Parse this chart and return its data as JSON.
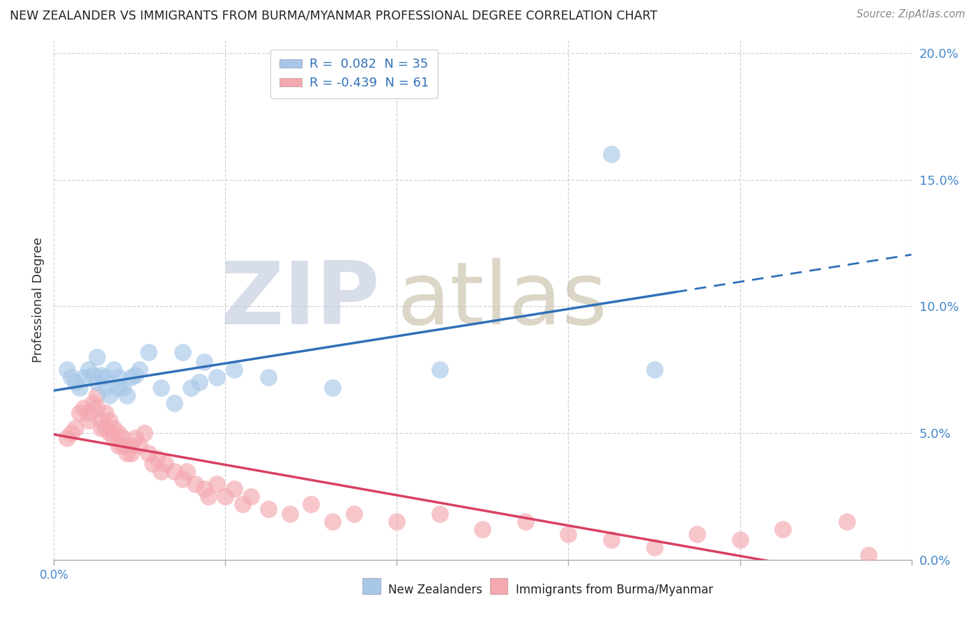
{
  "title": "NEW ZEALANDER VS IMMIGRANTS FROM BURMA/MYANMAR PROFESSIONAL DEGREE CORRELATION CHART",
  "source": "Source: ZipAtlas.com",
  "ylabel": "Professional Degree",
  "legend_nz": "R =  0.082  N = 35",
  "legend_burma": "R = -0.439  N = 61",
  "legend_label_nz": "New Zealanders",
  "legend_label_burma": "Immigrants from Burma/Myanmar",
  "nz_color": "#a8c8e8",
  "burma_color": "#f4a8b0",
  "nz_line_color": "#3070b8",
  "burma_line_color": "#d84060",
  "nz_scatter_x": [
    0.003,
    0.004,
    0.005,
    0.006,
    0.007,
    0.008,
    0.009,
    0.01,
    0.01,
    0.011,
    0.012,
    0.012,
    0.013,
    0.014,
    0.015,
    0.015,
    0.016,
    0.017,
    0.018,
    0.019,
    0.02,
    0.022,
    0.025,
    0.028,
    0.03,
    0.032,
    0.034,
    0.035,
    0.038,
    0.042,
    0.05,
    0.065,
    0.09,
    0.13,
    0.14
  ],
  "nz_scatter_y": [
    0.075,
    0.072,
    0.07,
    0.068,
    0.072,
    0.075,
    0.073,
    0.07,
    0.08,
    0.073,
    0.068,
    0.072,
    0.065,
    0.075,
    0.068,
    0.072,
    0.068,
    0.065,
    0.072,
    0.073,
    0.075,
    0.082,
    0.068,
    0.062,
    0.082,
    0.068,
    0.07,
    0.078,
    0.072,
    0.075,
    0.072,
    0.068,
    0.075,
    0.16,
    0.075
  ],
  "burma_scatter_x": [
    0.003,
    0.004,
    0.005,
    0.006,
    0.007,
    0.008,
    0.008,
    0.009,
    0.01,
    0.01,
    0.011,
    0.011,
    0.012,
    0.012,
    0.013,
    0.013,
    0.014,
    0.014,
    0.015,
    0.015,
    0.016,
    0.016,
    0.017,
    0.018,
    0.018,
    0.019,
    0.02,
    0.021,
    0.022,
    0.023,
    0.024,
    0.025,
    0.026,
    0.028,
    0.03,
    0.031,
    0.033,
    0.035,
    0.036,
    0.038,
    0.04,
    0.042,
    0.044,
    0.046,
    0.05,
    0.055,
    0.06,
    0.065,
    0.07,
    0.08,
    0.09,
    0.1,
    0.11,
    0.12,
    0.13,
    0.14,
    0.15,
    0.16,
    0.17,
    0.185,
    0.19
  ],
  "burma_scatter_y": [
    0.048,
    0.05,
    0.052,
    0.058,
    0.06,
    0.058,
    0.055,
    0.062,
    0.065,
    0.06,
    0.052,
    0.055,
    0.058,
    0.052,
    0.05,
    0.055,
    0.048,
    0.052,
    0.045,
    0.05,
    0.045,
    0.048,
    0.042,
    0.045,
    0.042,
    0.048,
    0.045,
    0.05,
    0.042,
    0.038,
    0.04,
    0.035,
    0.038,
    0.035,
    0.032,
    0.035,
    0.03,
    0.028,
    0.025,
    0.03,
    0.025,
    0.028,
    0.022,
    0.025,
    0.02,
    0.018,
    0.022,
    0.015,
    0.018,
    0.015,
    0.018,
    0.012,
    0.015,
    0.01,
    0.008,
    0.005,
    0.01,
    0.008,
    0.012,
    0.015,
    0.002
  ],
  "xlim": [
    0.0,
    0.2
  ],
  "ylim": [
    0.0,
    0.205
  ],
  "yticks": [
    0.0,
    0.05,
    0.1,
    0.15,
    0.2
  ],
  "ytick_labels_right": [
    "0.0%",
    "5.0%",
    "10.0%",
    "15.0%",
    "20.0%"
  ],
  "xtick_positions": [
    0.0,
    0.04,
    0.08,
    0.12,
    0.16,
    0.2
  ],
  "bg_color": "#ffffff",
  "grid_color": "#d0d0d8",
  "watermark_zip_color": "#c8d0e0",
  "watermark_atlas_color": "#c8c0a8"
}
